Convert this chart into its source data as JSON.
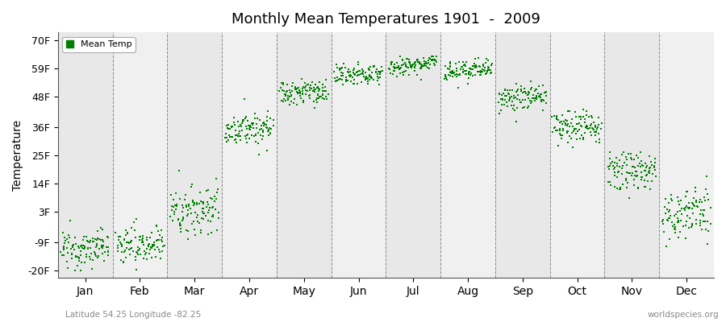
{
  "title": "Monthly Mean Temperatures 1901  -  2009",
  "ylabel": "Temperature",
  "yticks": [
    -20,
    -9,
    3,
    14,
    25,
    36,
    48,
    59,
    70
  ],
  "ytick_labels": [
    "-20F",
    "-9F",
    "3F",
    "14F",
    "25F",
    "36F",
    "48F",
    "59F",
    "70F"
  ],
  "ylim": [
    -23,
    73
  ],
  "months": [
    "Jan",
    "Feb",
    "Mar",
    "Apr",
    "May",
    "Jun",
    "Jul",
    "Aug",
    "Sep",
    "Oct",
    "Nov",
    "Dec"
  ],
  "dot_color": "#008000",
  "dot_size": 3,
  "legend_label": "Mean Temp",
  "bottom_left": "Latitude 54.25 Longitude -82.25",
  "bottom_right": "worldspecies.org",
  "month_means": [
    -11.5,
    -10.0,
    3.5,
    35.5,
    49.5,
    56.5,
    60.5,
    58.0,
    47.5,
    36.0,
    19.0,
    2.0
  ],
  "month_stds": [
    3.5,
    3.5,
    5.0,
    3.0,
    2.5,
    2.0,
    1.8,
    2.0,
    2.5,
    3.0,
    3.5,
    5.0
  ],
  "n_points": 109,
  "band_colors": [
    "#e8e8e8",
    "#f0f0f0"
  ]
}
